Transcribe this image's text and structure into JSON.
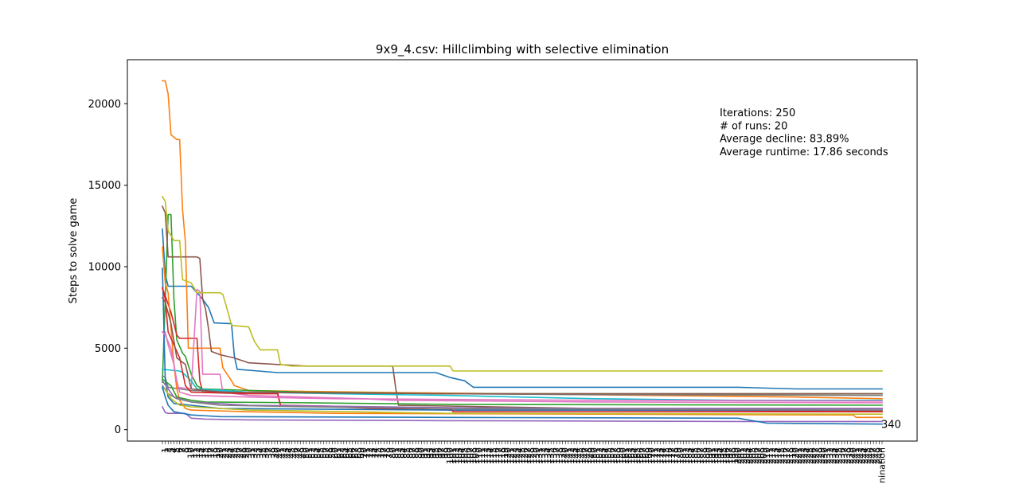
{
  "chart_data": {
    "type": "line",
    "title": "9x9_4.csv: Hillclimbing with selective elimination",
    "xlabel": "",
    "ylabel": "Steps to solve game",
    "xlim": [
      0,
      250
    ],
    "ylim": [
      -700,
      22700
    ],
    "yticks": [
      0,
      5000,
      10000,
      15000,
      20000
    ],
    "ytick_labels": [
      "0",
      "5000",
      "10000",
      "15000",
      "20000"
    ],
    "xtick_last_label": "nination",
    "grid": false,
    "annotations": [
      "Iterations: 250",
      "# of runs: 20",
      "Average decline: 83.89%",
      "Average runtime: 17.86 seconds"
    ],
    "final_label": "340",
    "series": [
      {
        "color": "#1f77b4",
        "points": [
          [
            0,
            12300
          ],
          [
            1,
            9500
          ],
          [
            2,
            8800
          ],
          [
            10,
            8800
          ],
          [
            14,
            8000
          ],
          [
            16,
            7500
          ],
          [
            18,
            6550
          ],
          [
            24,
            6500
          ],
          [
            25,
            4500
          ],
          [
            26,
            3700
          ],
          [
            30,
            3650
          ],
          [
            40,
            3500
          ],
          [
            95,
            3500
          ],
          [
            100,
            3200
          ],
          [
            105,
            3000
          ],
          [
            108,
            2600
          ],
          [
            200,
            2600
          ],
          [
            210,
            2550
          ],
          [
            220,
            2500
          ],
          [
            250,
            2500
          ]
        ]
      },
      {
        "color": "#ff7f0e",
        "points": [
          [
            0,
            21400
          ],
          [
            1,
            21400
          ],
          [
            2,
            20600
          ],
          [
            3,
            18100
          ],
          [
            5,
            17800
          ],
          [
            6,
            17800
          ],
          [
            7,
            13500
          ],
          [
            8,
            11500
          ],
          [
            9,
            5000
          ],
          [
            15,
            5000
          ],
          [
            20,
            5000
          ],
          [
            21,
            3800
          ],
          [
            24,
            3000
          ],
          [
            25,
            2700
          ],
          [
            30,
            2400
          ],
          [
            70,
            2300
          ],
          [
            220,
            2000
          ],
          [
            250,
            1900
          ]
        ]
      },
      {
        "color": "#2ca02c",
        "points": [
          [
            0,
            2900
          ],
          [
            2,
            13200
          ],
          [
            3,
            13200
          ],
          [
            4,
            8000
          ],
          [
            5,
            5500
          ],
          [
            7,
            4700
          ],
          [
            8,
            4500
          ],
          [
            10,
            3400
          ],
          [
            12,
            2700
          ],
          [
            14,
            2500
          ],
          [
            50,
            2300
          ],
          [
            100,
            2200
          ],
          [
            250,
            2200
          ]
        ]
      },
      {
        "color": "#d62728",
        "points": [
          [
            0,
            8700
          ],
          [
            1,
            8200
          ],
          [
            3,
            7200
          ],
          [
            5,
            5800
          ],
          [
            6,
            5600
          ],
          [
            12,
            5600
          ],
          [
            13,
            3000
          ],
          [
            14,
            2300
          ],
          [
            30,
            2300
          ],
          [
            40,
            2300
          ],
          [
            41,
            1500
          ],
          [
            75,
            1300
          ],
          [
            100,
            1200
          ],
          [
            150,
            1200
          ],
          [
            250,
            1150
          ]
        ]
      },
      {
        "color": "#9467bd",
        "points": [
          [
            0,
            1400
          ],
          [
            1,
            1050
          ],
          [
            2,
            1000
          ],
          [
            8,
            1000
          ],
          [
            10,
            700
          ],
          [
            15,
            650
          ],
          [
            30,
            600
          ],
          [
            100,
            550
          ],
          [
            200,
            500
          ],
          [
            250,
            500
          ]
        ]
      },
      {
        "color": "#8c564b",
        "points": [
          [
            0,
            13700
          ],
          [
            1,
            13300
          ],
          [
            2,
            10600
          ],
          [
            12,
            10600
          ],
          [
            13,
            10500
          ],
          [
            14,
            8000
          ],
          [
            15,
            7400
          ],
          [
            16,
            6200
          ],
          [
            17,
            4800
          ],
          [
            20,
            4600
          ],
          [
            25,
            4400
          ],
          [
            30,
            4100
          ],
          [
            40,
            4000
          ],
          [
            50,
            3900
          ],
          [
            70,
            3900
          ],
          [
            80,
            3900
          ],
          [
            81,
            2600
          ],
          [
            82,
            1500
          ],
          [
            150,
            1300
          ],
          [
            250,
            1300
          ]
        ]
      },
      {
        "color": "#e377c2",
        "points": [
          [
            0,
            6000
          ],
          [
            1,
            6000
          ],
          [
            2,
            5200
          ],
          [
            4,
            4000
          ],
          [
            5,
            2600
          ],
          [
            10,
            2500
          ],
          [
            12,
            8600
          ],
          [
            13,
            8500
          ],
          [
            14,
            3400
          ],
          [
            20,
            3400
          ],
          [
            21,
            2300
          ],
          [
            30,
            2100
          ],
          [
            70,
            1900
          ],
          [
            80,
            1800
          ],
          [
            150,
            1700
          ],
          [
            250,
            1650
          ]
        ]
      },
      {
        "color": "#7f7f7f",
        "points": [
          [
            0,
            3300
          ],
          [
            1,
            3200
          ],
          [
            2,
            2600
          ],
          [
            10,
            2400
          ],
          [
            30,
            2300
          ],
          [
            100,
            2200
          ],
          [
            150,
            2150
          ],
          [
            250,
            2100
          ]
        ]
      },
      {
        "color": "#bcbd22",
        "points": [
          [
            0,
            14300
          ],
          [
            1,
            14000
          ],
          [
            2,
            12200
          ],
          [
            4,
            11600
          ],
          [
            6,
            11600
          ],
          [
            7,
            9200
          ],
          [
            10,
            9000
          ],
          [
            12,
            8400
          ],
          [
            20,
            8400
          ],
          [
            21,
            8300
          ],
          [
            22,
            7700
          ],
          [
            24,
            6400
          ],
          [
            30,
            6300
          ],
          [
            32,
            5400
          ],
          [
            34,
            4900
          ],
          [
            40,
            4900
          ],
          [
            41,
            4000
          ],
          [
            45,
            3900
          ],
          [
            100,
            3900
          ],
          [
            101,
            3600
          ],
          [
            250,
            3600
          ]
        ]
      },
      {
        "color": "#17becf",
        "points": [
          [
            0,
            3700
          ],
          [
            6,
            3600
          ],
          [
            7,
            3500
          ],
          [
            10,
            3000
          ],
          [
            12,
            2500
          ],
          [
            30,
            2300
          ],
          [
            60,
            2200
          ],
          [
            100,
            2100
          ],
          [
            150,
            1900
          ],
          [
            200,
            1800
          ],
          [
            250,
            1800
          ]
        ]
      },
      {
        "color": "#1f77b4",
        "points": [
          [
            0,
            9900
          ],
          [
            1,
            3000
          ],
          [
            2,
            2000
          ],
          [
            4,
            1600
          ],
          [
            10,
            1500
          ],
          [
            20,
            1300
          ],
          [
            100,
            1200
          ],
          [
            250,
            1200
          ]
        ]
      },
      {
        "color": "#ff7f0e",
        "points": [
          [
            0,
            11200
          ],
          [
            1,
            9000
          ],
          [
            2,
            8400
          ],
          [
            4,
            4000
          ],
          [
            5,
            2500
          ],
          [
            6,
            1800
          ],
          [
            8,
            1300
          ],
          [
            10,
            1200
          ],
          [
            30,
            1100
          ],
          [
            60,
            1000
          ],
          [
            150,
            950
          ],
          [
            240,
            900
          ],
          [
            241,
            750
          ],
          [
            250,
            750
          ]
        ]
      },
      {
        "color": "#2ca02c",
        "points": [
          [
            0,
            3100
          ],
          [
            3,
            2700
          ],
          [
            5,
            2000
          ],
          [
            10,
            1800
          ],
          [
            15,
            1700
          ],
          [
            50,
            1650
          ],
          [
            100,
            1550
          ],
          [
            250,
            1500
          ]
        ]
      },
      {
        "color": "#d62728",
        "points": [
          [
            0,
            8700
          ],
          [
            1,
            8000
          ],
          [
            2,
            6000
          ],
          [
            4,
            5200
          ],
          [
            6,
            4400
          ],
          [
            8,
            2700
          ],
          [
            10,
            2300
          ],
          [
            30,
            2200
          ],
          [
            40,
            2200
          ],
          [
            41,
            1500
          ],
          [
            100,
            1300
          ],
          [
            101,
            1100
          ],
          [
            250,
            1100
          ]
        ]
      },
      {
        "color": "#9467bd",
        "points": [
          [
            0,
            3000
          ],
          [
            2,
            2500
          ],
          [
            4,
            2000
          ],
          [
            10,
            1700
          ],
          [
            30,
            1500
          ],
          [
            100,
            1350
          ],
          [
            150,
            1300
          ],
          [
            250,
            1300
          ]
        ]
      },
      {
        "color": "#8c564b",
        "points": [
          [
            0,
            8100
          ],
          [
            1,
            7800
          ],
          [
            3,
            6500
          ],
          [
            5,
            4400
          ],
          [
            8,
            4000
          ],
          [
            10,
            2500
          ],
          [
            20,
            2300
          ],
          [
            100,
            2200
          ],
          [
            250,
            2200
          ]
        ]
      },
      {
        "color": "#e377c2",
        "points": [
          [
            0,
            6000
          ],
          [
            1,
            5800
          ],
          [
            3,
            5000
          ],
          [
            5,
            3000
          ],
          [
            6,
            2300
          ],
          [
            10,
            2100
          ],
          [
            30,
            2000
          ],
          [
            60,
            1900
          ],
          [
            150,
            1800
          ],
          [
            250,
            1750
          ]
        ]
      },
      {
        "color": "#7f7f7f",
        "points": [
          [
            0,
            2700
          ],
          [
            2,
            2200
          ],
          [
            5,
            1900
          ],
          [
            10,
            1700
          ],
          [
            20,
            1500
          ],
          [
            50,
            1400
          ],
          [
            100,
            1300
          ],
          [
            250,
            1200
          ]
        ]
      },
      {
        "color": "#bcbd22",
        "points": [
          [
            0,
            2500
          ],
          [
            1,
            2500
          ],
          [
            3,
            1900
          ],
          [
            6,
            1500
          ],
          [
            10,
            1400
          ],
          [
            30,
            1200
          ],
          [
            100,
            1000
          ],
          [
            250,
            950
          ]
        ]
      },
      {
        "color": "#1f77b4",
        "points": [
          [
            0,
            2600
          ],
          [
            1,
            2000
          ],
          [
            2,
            1500
          ],
          [
            4,
            1100
          ],
          [
            10,
            900
          ],
          [
            20,
            800
          ],
          [
            100,
            750
          ],
          [
            200,
            700
          ],
          [
            210,
            400
          ],
          [
            250,
            340
          ]
        ]
      }
    ]
  }
}
